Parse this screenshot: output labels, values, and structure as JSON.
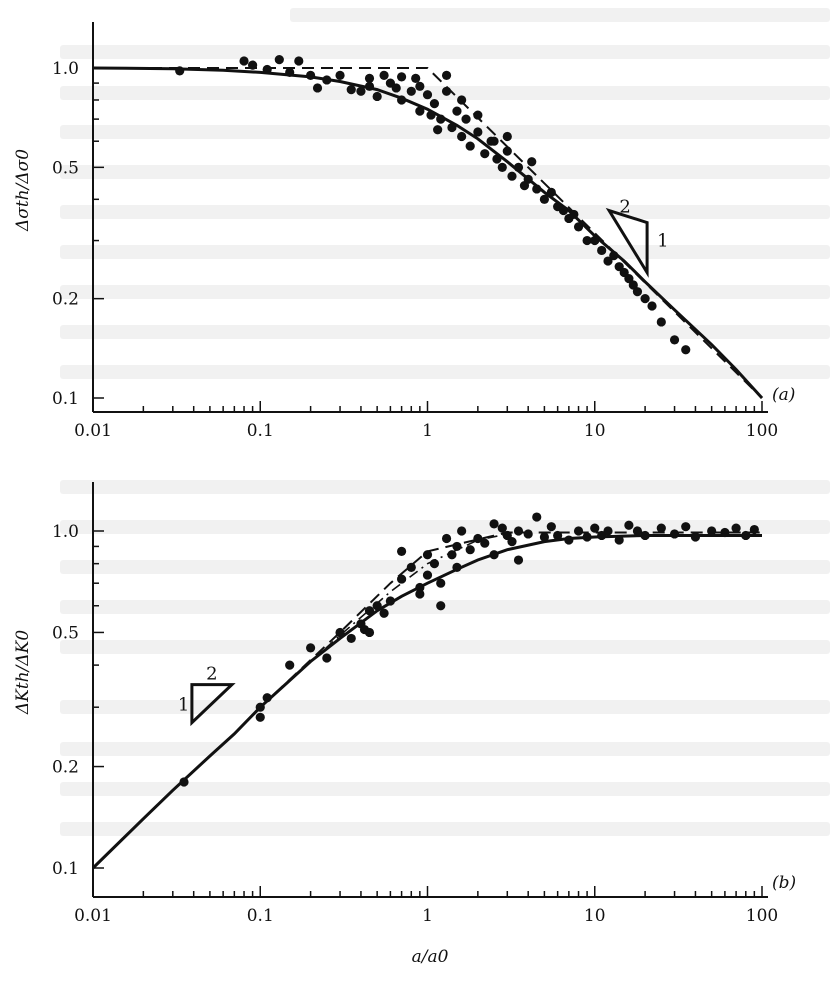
{
  "chart_data": [
    {
      "type": "scatter",
      "panel_label": "(a)",
      "xlabel": "",
      "ylabel": "Δσth/Δσ0",
      "xscale": "log",
      "yscale": "log",
      "xlim": [
        0.01,
        100
      ],
      "ylim": [
        0.09,
        1.25
      ],
      "xticks": [
        0.01,
        0.1,
        1,
        10,
        100
      ],
      "xtick_labels": [
        "0.01",
        "0.1",
        "1",
        "10",
        "100"
      ],
      "yticks": [
        0.1,
        0.2,
        0.5,
        1.0
      ],
      "ytick_labels": [
        "0.1",
        "0.2",
        "0.5",
        "1.0"
      ],
      "grid": false,
      "slope_marker": {
        "rise": "2",
        "run": "1",
        "x": 20,
        "y": 0.3
      },
      "series": [
        {
          "role": "data-points",
          "x": [
            0.033,
            0.08,
            0.09,
            0.11,
            0.13,
            0.15,
            0.17,
            0.2,
            0.22,
            0.25,
            0.3,
            0.35,
            0.4,
            0.45,
            0.5,
            0.55,
            0.6,
            0.65,
            0.7,
            0.8,
            0.85,
            0.9,
            1.0,
            1.05,
            1.1,
            1.2,
            1.3,
            1.4,
            1.5,
            1.6,
            1.7,
            1.8,
            2.0,
            2.2,
            2.4,
            2.6,
            2.8,
            3.0,
            3.2,
            3.5,
            3.8,
            4.0,
            4.5,
            5.0,
            5.5,
            6.0,
            6.5,
            7.0,
            7.5,
            8.0,
            9.0,
            10.0,
            11.0,
            12.0,
            13.0,
            14.0,
            15.0,
            16.0,
            17.0,
            18.0,
            20.0,
            22.0,
            25.0,
            30.0,
            35.0,
            1.3,
            1.6,
            2.0,
            0.7,
            0.45,
            3.0,
            4.2,
            0.9,
            1.15,
            2.5
          ],
          "y": [
            0.98,
            1.05,
            1.02,
            0.99,
            1.06,
            0.97,
            1.05,
            0.95,
            0.87,
            0.92,
            0.95,
            0.86,
            0.85,
            0.88,
            0.82,
            0.95,
            0.9,
            0.87,
            0.8,
            0.85,
            0.93,
            0.74,
            0.83,
            0.72,
            0.78,
            0.7,
            0.85,
            0.66,
            0.74,
            0.62,
            0.7,
            0.58,
            0.64,
            0.55,
            0.6,
            0.53,
            0.5,
            0.56,
            0.47,
            0.5,
            0.44,
            0.46,
            0.43,
            0.4,
            0.42,
            0.38,
            0.37,
            0.35,
            0.36,
            0.33,
            0.3,
            0.3,
            0.28,
            0.26,
            0.27,
            0.25,
            0.24,
            0.23,
            0.22,
            0.21,
            0.2,
            0.19,
            0.17,
            0.15,
            0.14,
            0.95,
            0.8,
            0.72,
            0.94,
            0.93,
            0.62,
            0.52,
            0.88,
            0.65,
            0.6
          ]
        },
        {
          "role": "solid-curve",
          "x": [
            0.01,
            0.03,
            0.06,
            0.1,
            0.2,
            0.3,
            0.5,
            0.7,
            1.0,
            1.5,
            2.0,
            3.0,
            5.0,
            7.0,
            10.0,
            15.0,
            20.0,
            30.0,
            50.0,
            70.0,
            100.0
          ],
          "y": [
            1.0,
            0.995,
            0.985,
            0.97,
            0.94,
            0.91,
            0.86,
            0.81,
            0.75,
            0.67,
            0.61,
            0.52,
            0.42,
            0.37,
            0.31,
            0.26,
            0.225,
            0.185,
            0.145,
            0.122,
            0.1
          ]
        },
        {
          "role": "dashed-line",
          "x": [
            0.01,
            1.0,
            10.0,
            100.0
          ],
          "y": [
            1.0,
            1.0,
            0.316,
            0.1
          ]
        }
      ]
    },
    {
      "type": "scatter",
      "panel_label": "(b)",
      "xlabel": "a/a0",
      "ylabel": "ΔKth/ΔK0",
      "xscale": "log",
      "yscale": "log",
      "xlim": [
        0.01,
        100
      ],
      "ylim": [
        0.09,
        1.25
      ],
      "xticks": [
        0.01,
        0.1,
        1,
        10,
        100
      ],
      "xtick_labels": [
        "0.01",
        "0.1",
        "1",
        "10",
        "100"
      ],
      "yticks": [
        0.1,
        0.2,
        0.5,
        1.0
      ],
      "ytick_labels": [
        "0.1",
        "0.2",
        "0.5",
        "1.0"
      ],
      "grid": false,
      "slope_marker": {
        "rise": "2",
        "run": "1",
        "x": 0.05,
        "y": 0.27
      },
      "series": [
        {
          "role": "data-points",
          "x": [
            0.035,
            0.1,
            0.1,
            0.11,
            0.15,
            0.2,
            0.25,
            0.3,
            0.35,
            0.4,
            0.42,
            0.45,
            0.5,
            0.55,
            0.6,
            0.7,
            0.8,
            0.9,
            1.0,
            1.1,
            1.2,
            1.3,
            1.4,
            1.5,
            1.6,
            1.8,
            2.0,
            2.2,
            2.5,
            2.8,
            3.0,
            3.2,
            3.5,
            4.0,
            4.5,
            5.0,
            5.5,
            6.0,
            7.0,
            8.0,
            9.0,
            10.0,
            11.0,
            12.0,
            14.0,
            16.0,
            18.0,
            20.0,
            25.0,
            30.0,
            35.0,
            40.0,
            50.0,
            60.0,
            70.0,
            80.0,
            90.0,
            0.9,
            1.0,
            1.2,
            0.7,
            2.5,
            3.5,
            1.5,
            0.45
          ],
          "y": [
            0.18,
            0.3,
            0.28,
            0.32,
            0.4,
            0.45,
            0.42,
            0.5,
            0.48,
            0.53,
            0.51,
            0.5,
            0.6,
            0.57,
            0.62,
            0.72,
            0.78,
            0.68,
            0.74,
            0.8,
            0.7,
            0.95,
            0.85,
            0.9,
            1.0,
            0.88,
            0.95,
            0.92,
            1.05,
            1.02,
            0.97,
            0.93,
            1.0,
            0.98,
            1.1,
            0.96,
            1.03,
            0.97,
            0.94,
            1.0,
            0.96,
            1.02,
            0.97,
            1.0,
            0.94,
            1.04,
            1.0,
            0.97,
            1.02,
            0.98,
            1.03,
            0.96,
            1.0,
            0.99,
            1.02,
            0.97,
            1.01,
            0.65,
            0.85,
            0.6,
            0.87,
            0.85,
            0.82,
            0.78,
            0.58
          ]
        },
        {
          "role": "solid-curve",
          "x": [
            0.01,
            0.02,
            0.03,
            0.05,
            0.07,
            0.1,
            0.15,
            0.2,
            0.3,
            0.5,
            0.7,
            1.0,
            1.5,
            2.0,
            3.0,
            5.0,
            7.0,
            10.0,
            20.0,
            50.0,
            100.0
          ],
          "y": [
            0.1,
            0.14,
            0.17,
            0.215,
            0.25,
            0.3,
            0.36,
            0.41,
            0.48,
            0.58,
            0.64,
            0.7,
            0.77,
            0.82,
            0.88,
            0.93,
            0.95,
            0.96,
            0.97,
            0.97,
            0.97
          ]
        },
        {
          "role": "dashed-line",
          "x": [
            0.1,
            0.3,
            0.6,
            1.0,
            3.0,
            100.0
          ],
          "y": [
            0.3,
            0.5,
            0.7,
            0.87,
            0.99,
            0.99
          ]
        },
        {
          "role": "dash-dot-line",
          "x": [
            0.1,
            0.3,
            0.6,
            1.0,
            2.0,
            3.0
          ],
          "y": [
            0.3,
            0.49,
            0.66,
            0.8,
            0.94,
            0.98
          ]
        }
      ]
    }
  ]
}
